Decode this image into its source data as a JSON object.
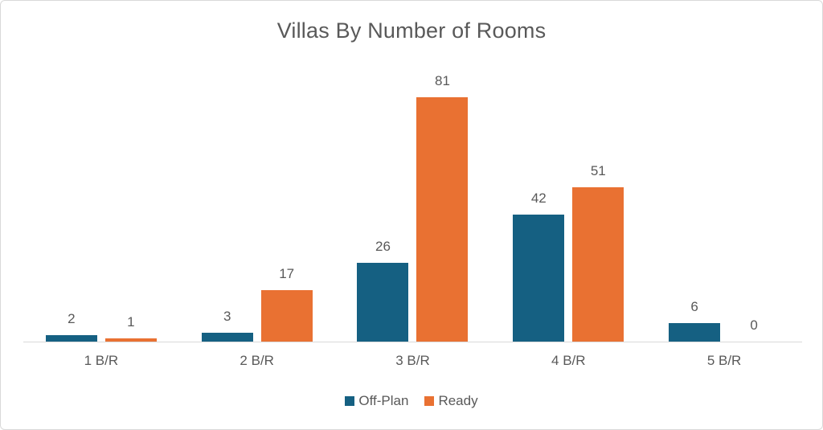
{
  "chart_data": {
    "type": "bar",
    "title": "Villas By Number of Rooms",
    "categories": [
      "1 B/R",
      "2 B/R",
      "3 B/R",
      "4 B/R",
      "5 B/R"
    ],
    "series": [
      {
        "name": "Off-Plan",
        "color": "#156082",
        "values": [
          2,
          3,
          26,
          42,
          6
        ]
      },
      {
        "name": "Ready",
        "color": "#E97132",
        "values": [
          1,
          17,
          81,
          51,
          0
        ]
      }
    ],
    "ylim": [
      0,
      90
    ],
    "grid": false,
    "data_labels": true,
    "legend_position": "bottom",
    "xlabel": "",
    "ylabel": "",
    "colors": {
      "text": "#595959",
      "axis_line": "#D9D9D9",
      "background": "#FFFFFF",
      "border": "#D9D9D9"
    }
  }
}
